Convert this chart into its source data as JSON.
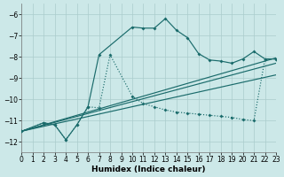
{
  "xlabel": "Humidex (Indice chaleur)",
  "bg_color": "#cce8e8",
  "grid_color": "#aacccc",
  "line_color": "#1a6b6b",
  "xlim": [
    0,
    23
  ],
  "ylim": [
    -12.5,
    -5.5
  ],
  "xticks": [
    0,
    1,
    2,
    3,
    4,
    5,
    6,
    7,
    8,
    9,
    10,
    11,
    12,
    13,
    14,
    15,
    16,
    17,
    18,
    19,
    20,
    21,
    22,
    23
  ],
  "yticks": [
    -12,
    -11,
    -10,
    -9,
    -8,
    -7,
    -6
  ],
  "curve_upper_x": [
    0,
    2,
    3,
    4,
    5,
    6,
    7,
    10,
    11,
    12,
    13,
    14,
    15,
    16,
    17,
    18,
    19,
    20,
    21,
    22,
    23
  ],
  "curve_upper_y": [
    -11.5,
    -11.1,
    -11.2,
    -11.9,
    -11.2,
    -10.35,
    -7.9,
    -6.6,
    -6.65,
    -6.65,
    -6.2,
    -6.75,
    -7.1,
    -7.85,
    -8.15,
    -8.2,
    -8.3,
    -8.1,
    -7.75,
    -8.1,
    -8.1
  ],
  "curve_lower_x": [
    0,
    2,
    3,
    4,
    5,
    6,
    7,
    8,
    10,
    11,
    12,
    13,
    14,
    15,
    16,
    17,
    18,
    19,
    20,
    21,
    22,
    23
  ],
  "curve_lower_y": [
    -11.5,
    -11.1,
    -11.2,
    -11.9,
    -11.2,
    -10.35,
    -10.4,
    -7.9,
    -9.85,
    -10.2,
    -10.35,
    -10.5,
    -10.6,
    -10.65,
    -10.7,
    -10.75,
    -10.8,
    -10.85,
    -10.95,
    -11.0,
    -8.1,
    -8.1
  ],
  "line_endpoints_x": [
    0,
    23
  ],
  "line1_y": [
    -11.5,
    -8.05
  ],
  "line2_y": [
    -11.5,
    -8.3
  ],
  "line3_y": [
    -11.5,
    -8.85
  ]
}
